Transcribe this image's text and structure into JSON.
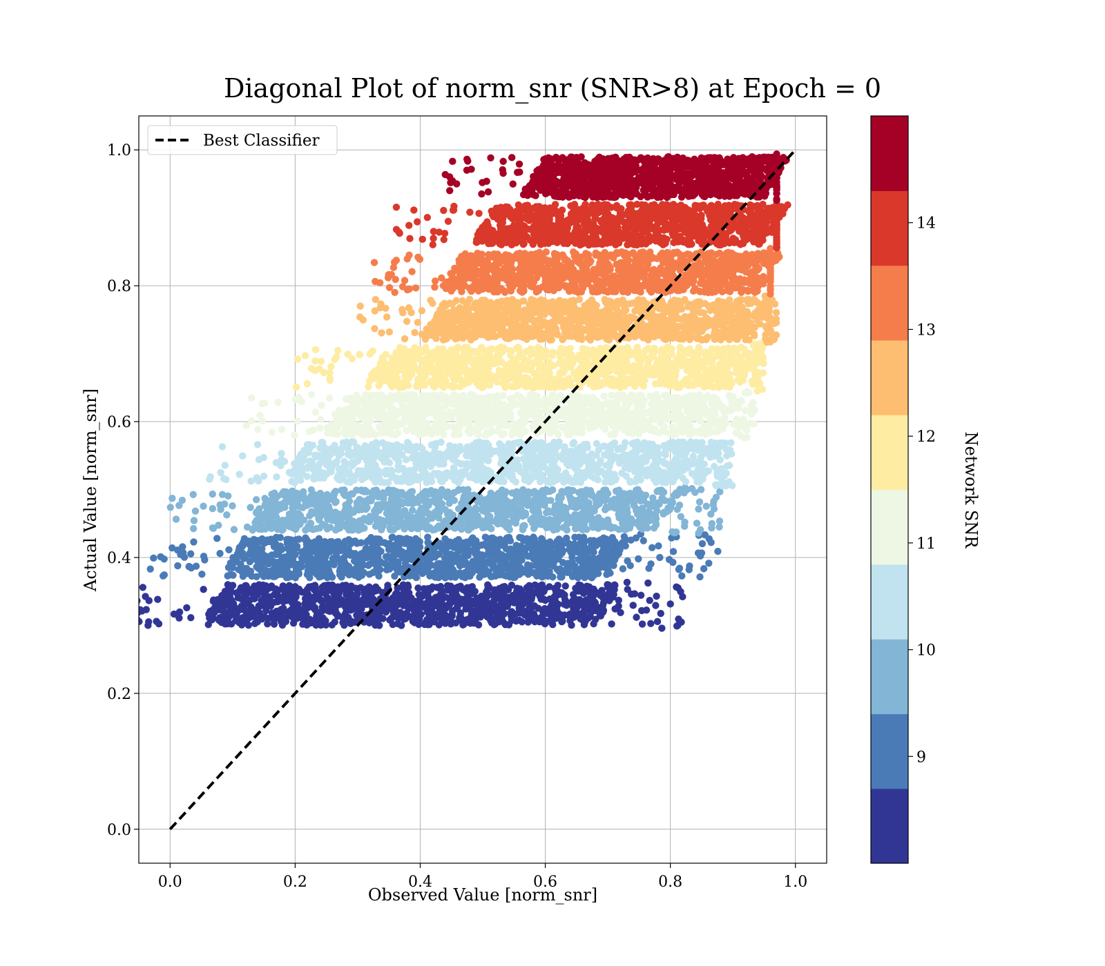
{
  "chart_data": {
    "type": "scatter",
    "title": "Diagonal Plot of norm_snr (SNR>8) at Epoch = 0",
    "xlabel": "Observed Value [norm_snr]",
    "ylabel": "Actual Value [norm_snr]",
    "xlim": [
      -0.05,
      1.05
    ],
    "ylim": [
      -0.05,
      1.05
    ],
    "x_ticks": [
      "0.0",
      "0.2",
      "0.4",
      "0.6",
      "0.8",
      "1.0"
    ],
    "y_ticks": [
      "0.0",
      "0.2",
      "0.4",
      "0.6",
      "0.8",
      "1.0"
    ],
    "grid": true,
    "legend": {
      "placement": "top-left",
      "entries": [
        "Best Classifier"
      ]
    },
    "reference_line": {
      "name": "Best Classifier",
      "style": "dashed",
      "color": "#000000",
      "x": [
        0.0,
        1.0
      ],
      "y": [
        0.0,
        1.0
      ]
    },
    "colorbar": {
      "label": "Network SNR",
      "range": [
        8,
        15
      ],
      "ticks": [
        "9",
        "10",
        "11",
        "12",
        "13",
        "14"
      ],
      "bands": [
        {
          "from": 8.0,
          "to": 8.7,
          "color": "#313695"
        },
        {
          "from": 8.7,
          "to": 9.4,
          "color": "#4a7bb7"
        },
        {
          "from": 9.4,
          "to": 10.1,
          "color": "#82b5d6"
        },
        {
          "from": 10.1,
          "to": 10.8,
          "color": "#c0e3ef"
        },
        {
          "from": 10.8,
          "to": 11.5,
          "color": "#edf7e3"
        },
        {
          "from": 11.5,
          "to": 12.2,
          "color": "#feeca3"
        },
        {
          "from": 12.2,
          "to": 12.9,
          "color": "#fdbe71"
        },
        {
          "from": 12.9,
          "to": 13.6,
          "color": "#f57d4b"
        },
        {
          "from": 13.6,
          "to": 14.3,
          "color": "#da382a"
        },
        {
          "from": 14.3,
          "to": 15.0,
          "color": "#a50026"
        }
      ]
    },
    "series": [
      {
        "snr_band": "8.0-8.7",
        "color": "#313695",
        "y_range": [
          0.3,
          0.36
        ],
        "x_core": [
          0.07,
          0.7
        ],
        "x_sparse_max": 0.82
      },
      {
        "snr_band": "8.7-9.4",
        "color": "#4a7bb7",
        "y_range": [
          0.37,
          0.43
        ],
        "x_core": [
          0.1,
          0.72
        ],
        "x_sparse_max": 0.88
      },
      {
        "snr_band": "9.4-10.1",
        "color": "#82b5d6",
        "y_range": [
          0.44,
          0.5
        ],
        "x_core": [
          0.14,
          0.8
        ],
        "x_sparse_max": 0.89
      },
      {
        "snr_band": "10.1-10.8",
        "color": "#c0e3ef",
        "y_range": [
          0.51,
          0.57
        ],
        "x_core": [
          0.2,
          0.87
        ],
        "x_sparse_max": 0.9
      },
      {
        "snr_band": "10.8-11.5",
        "color": "#edf7e3",
        "y_range": [
          0.58,
          0.64
        ],
        "x_core": [
          0.26,
          0.9
        ],
        "x_sparse_max": 0.94
      },
      {
        "snr_band": "11.5-12.2",
        "color": "#feeca3",
        "y_range": [
          0.65,
          0.71
        ],
        "x_core": [
          0.33,
          0.93
        ],
        "x_sparse_max": 0.95
      },
      {
        "snr_band": "12.2-12.9",
        "color": "#fdbe71",
        "y_range": [
          0.72,
          0.78
        ],
        "x_core": [
          0.42,
          0.95
        ],
        "x_sparse_max": 0.97
      },
      {
        "snr_band": "12.9-13.6",
        "color": "#f57d4b",
        "y_range": [
          0.79,
          0.85
        ],
        "x_core": [
          0.45,
          0.96
        ],
        "x_sparse_max": 0.96
      },
      {
        "snr_band": "13.6-14.3",
        "color": "#da382a",
        "y_range": [
          0.86,
          0.92
        ],
        "x_core": [
          0.5,
          0.97
        ],
        "x_sparse_max": 0.97
      },
      {
        "snr_band": "14.3-15.0",
        "color": "#a50026",
        "y_range": [
          0.93,
          0.99
        ],
        "x_core": [
          0.58,
          0.97
        ],
        "x_sparse_max": 0.97
      }
    ]
  }
}
